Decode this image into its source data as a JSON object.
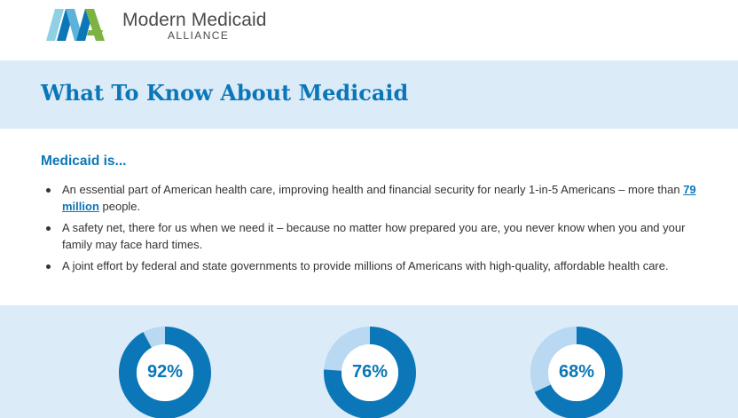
{
  "brand": {
    "name": "Modern Medicaid",
    "sub": "ALLIANCE",
    "colors": {
      "navy": "#0b77b8",
      "light_band": "#dcebf8",
      "ring_track": "#b9d8f2",
      "green": "#7cb342",
      "aqua": "#8fd0e4"
    }
  },
  "page": {
    "title": "What To Know About Medicaid"
  },
  "intro": {
    "heading": "Medicaid is...",
    "bullets": [
      {
        "before": "An essential part of American health care, improving health and financial security for nearly 1-in-5 Americans – more than ",
        "link": "79 million",
        "after": " people."
      },
      {
        "text": "A safety net, there for us when we need it – because no matter how prepared you are, you never know when you and your family may face hard times."
      },
      {
        "text": "A joint effort by federal and state governments to provide millions of Americans with high-quality, affordable health care."
      }
    ]
  },
  "stats": [
    {
      "label": "92%",
      "percent": 92
    },
    {
      "label": "76%",
      "percent": 76
    },
    {
      "label": "68%",
      "percent": 68
    }
  ]
}
